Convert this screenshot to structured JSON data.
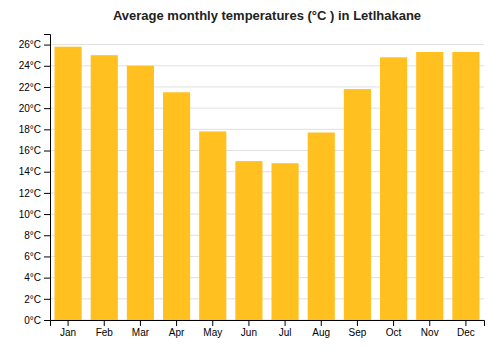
{
  "chart_data": {
    "type": "bar",
    "title": "Average monthly temperatures (°C ) in Letlhakane",
    "categories": [
      "Jan",
      "Feb",
      "Mar",
      "Apr",
      "May",
      "Jun",
      "Jul",
      "Aug",
      "Sep",
      "Oct",
      "Nov",
      "Dec"
    ],
    "values": [
      25.8,
      25.0,
      24.0,
      21.5,
      17.8,
      15.0,
      14.8,
      17.7,
      21.8,
      24.8,
      25.3,
      25.3
    ],
    "color": "#FFC020",
    "ylim": [
      0,
      27
    ],
    "yticks": [
      {
        "value": 0,
        "label": "0°C"
      },
      {
        "value": 2,
        "label": "2°C"
      },
      {
        "value": 4,
        "label": "4°C"
      },
      {
        "value": 6,
        "label": "6°C"
      },
      {
        "value": 8,
        "label": "8°C"
      },
      {
        "value": 10,
        "label": "10°C"
      },
      {
        "value": 12,
        "label": "12°C"
      },
      {
        "value": 14,
        "label": "14°C"
      },
      {
        "value": 16,
        "label": "16°C"
      },
      {
        "value": 18,
        "label": "18°C"
      },
      {
        "value": 20,
        "label": "20°C"
      },
      {
        "value": 22,
        "label": "22°C"
      },
      {
        "value": 24,
        "label": "24°C"
      },
      {
        "value": 26,
        "label": "26°C"
      }
    ],
    "grid": true
  }
}
